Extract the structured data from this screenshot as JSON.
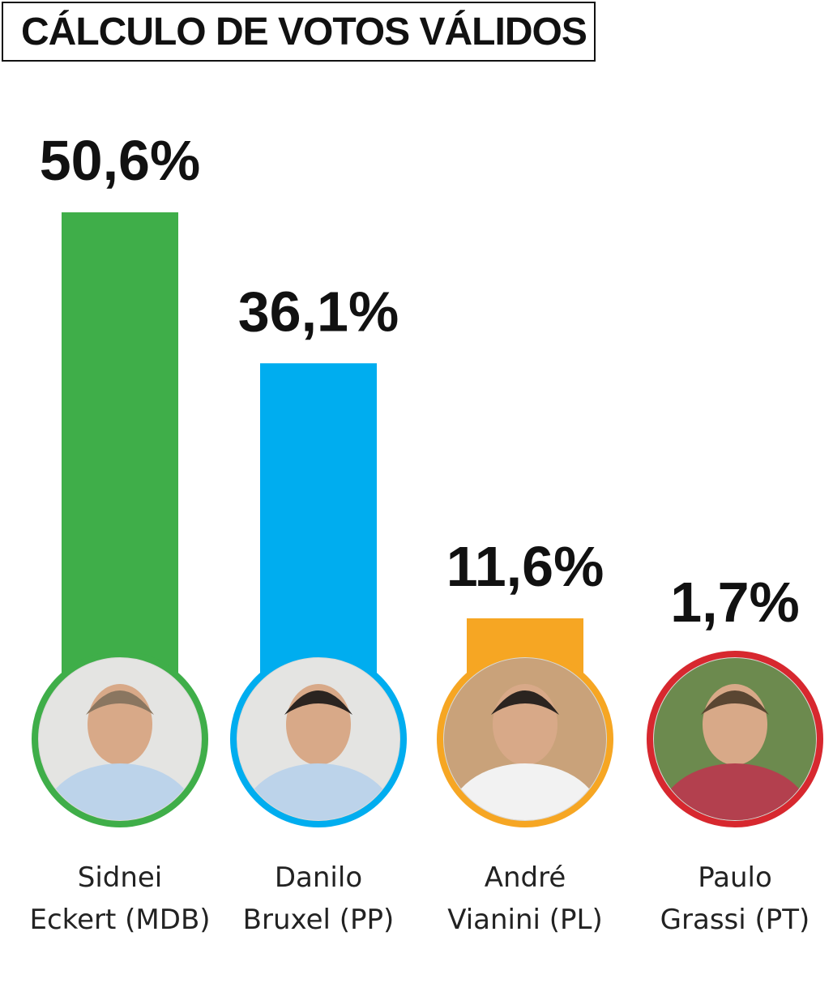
{
  "title": "CÁLCULO DE VOTOS VÁLIDOS",
  "chart_data": {
    "type": "bar",
    "title": "CÁLCULO DE VOTOS VÁLIDOS",
    "categories": [
      "Sidnei Eckert (MDB)",
      "Danilo Bruxel (PP)",
      "André Vianini (PL)",
      "Paulo Grassi (PT)"
    ],
    "values": [
      50.6,
      36.1,
      11.6,
      1.7
    ],
    "value_labels": [
      "50,6%",
      "36,1%",
      "11,6%",
      "1,7%"
    ],
    "name_lines": [
      [
        "Sidnei",
        "Eckert (MDB)"
      ],
      [
        "Danilo",
        "Bruxel (PP)"
      ],
      [
        "André",
        "Vianini (PL)"
      ],
      [
        "Paulo",
        "Grassi (PT)"
      ]
    ],
    "colors": [
      "#3FAE49",
      "#00ADEF",
      "#F6A623",
      "#D7282F"
    ],
    "unit": "%",
    "grid": false,
    "legend": "none"
  }
}
